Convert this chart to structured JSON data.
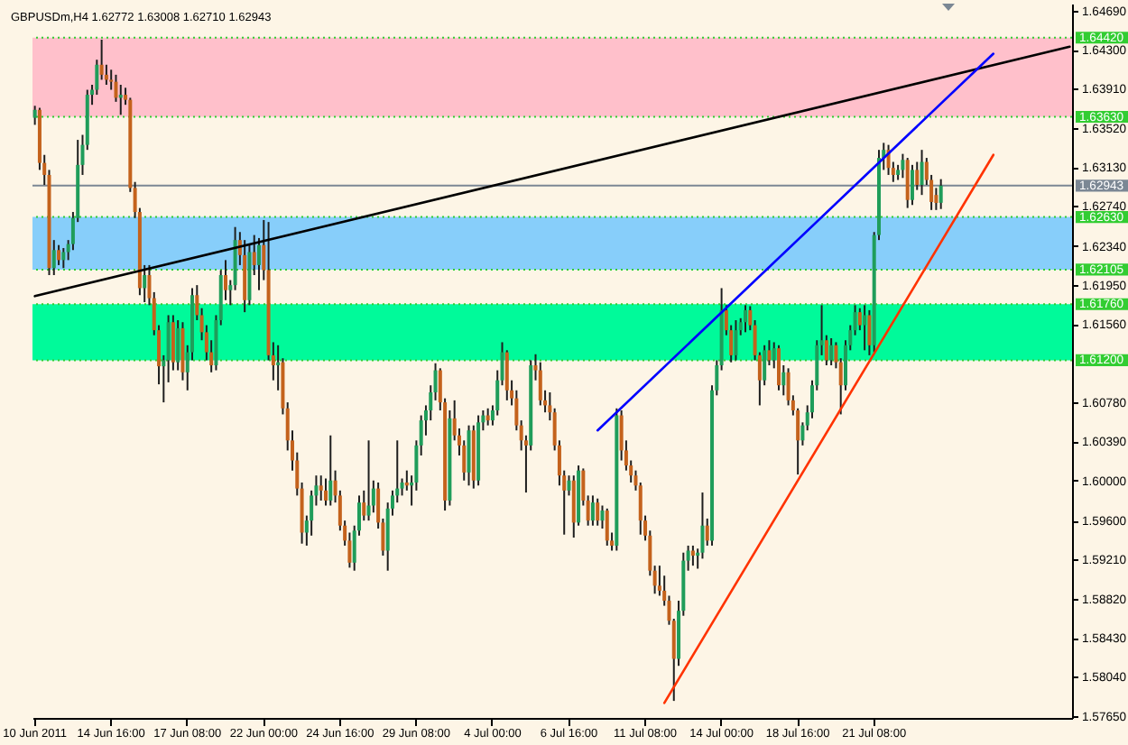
{
  "chart_data": {
    "type": "candlestick",
    "title": "GBPUSDm,H4 1.62772 1.63008 1.62710 1.62943",
    "categories": [
      "10 Jun 2011",
      null,
      null,
      null,
      null,
      null,
      null,
      null,
      null,
      null,
      null,
      null,
      null,
      null,
      null,
      null,
      "14 Jun 16:00",
      null,
      null,
      null,
      null,
      null,
      null,
      null,
      null,
      null,
      null,
      null,
      null,
      null,
      null,
      null,
      "17 Jun 08:00",
      null,
      null,
      null,
      null,
      null,
      null,
      null,
      null,
      null,
      null,
      null,
      null,
      null,
      null,
      null,
      "22 Jun 00:00",
      null,
      null,
      null,
      null,
      null,
      null,
      null,
      null,
      null,
      null,
      null,
      null,
      null,
      null,
      null,
      "24 Jun 16:00",
      null,
      null,
      null,
      null,
      null,
      null,
      null,
      null,
      null,
      null,
      null,
      null,
      null,
      null,
      null,
      "29 Jun 08:00",
      null,
      null,
      null,
      null,
      null,
      null,
      null,
      null,
      null,
      null,
      null,
      null,
      null,
      null,
      null,
      "4 Jul 00:00",
      null,
      null,
      null,
      null,
      null,
      null,
      null,
      null,
      null,
      null,
      null,
      null,
      null,
      null,
      null,
      "6 Jul 16:00",
      null,
      null,
      null,
      null,
      null,
      null,
      null,
      null,
      null,
      null,
      null,
      null,
      null,
      null,
      null,
      "11 Jul 08:00",
      null,
      null,
      null,
      null,
      null,
      null,
      null,
      null,
      null,
      null,
      null,
      null,
      null,
      null,
      null,
      "14 Jul 00:00",
      null,
      null,
      null,
      null,
      null,
      null,
      null,
      null,
      null,
      null,
      null,
      null,
      null,
      null,
      null,
      "18 Jul 16:00",
      null,
      null,
      null,
      null,
      null,
      null,
      null,
      null,
      null,
      null,
      null,
      null,
      null,
      null,
      null,
      "21 Jul 08:00",
      null,
      null,
      null,
      null,
      null,
      null,
      null,
      null,
      null,
      null,
      null,
      null,
      null,
      null,
      null,
      null,
      null,
      null,
      null,
      null,
      null,
      null,
      null,
      null,
      null,
      null,
      null,
      null,
      null,
      null,
      null,
      null,
      null,
      null,
      null,
      null,
      null,
      null,
      null,
      null,
      null
    ],
    "ohlc": [
      [
        1.6362,
        1.6374,
        1.6355,
        1.637
      ],
      [
        1.637,
        1.6372,
        1.631,
        1.6317
      ],
      [
        1.6317,
        1.6325,
        1.6295,
        1.6305
      ],
      [
        1.6305,
        1.631,
        1.6205,
        1.6212
      ],
      [
        1.6212,
        1.624,
        1.6205,
        1.623
      ],
      [
        1.623,
        1.6235,
        1.6215,
        1.622
      ],
      [
        1.622,
        1.6232,
        1.6212,
        1.6228
      ],
      [
        1.6228,
        1.624,
        1.622,
        1.6236
      ],
      [
        1.6236,
        1.6268,
        1.623,
        1.6262
      ],
      [
        1.6262,
        1.634,
        1.6258,
        1.6315
      ],
      [
        1.6315,
        1.6345,
        1.6305,
        1.6335
      ],
      [
        1.6335,
        1.639,
        1.633,
        1.6385
      ],
      [
        1.6385,
        1.6395,
        1.6375,
        1.639
      ],
      [
        1.639,
        1.642,
        1.6385,
        1.6415
      ],
      [
        1.6415,
        1.644,
        1.64,
        1.6405
      ],
      [
        1.6405,
        1.6415,
        1.6395,
        1.64
      ],
      [
        1.64,
        1.641,
        1.639,
        1.6398
      ],
      [
        1.6398,
        1.6405,
        1.6378,
        1.6382
      ],
      [
        1.6382,
        1.6395,
        1.6365,
        1.6385
      ],
      [
        1.6385,
        1.6392,
        1.6375,
        1.638
      ],
      [
        1.638,
        1.6382,
        1.6288,
        1.6292
      ],
      [
        1.6292,
        1.6298,
        1.6262,
        1.6268
      ],
      [
        1.6268,
        1.6272,
        1.6185,
        1.6192
      ],
      [
        1.6192,
        1.6215,
        1.6178,
        1.6205
      ],
      [
        1.6205,
        1.6215,
        1.6175,
        1.6182
      ],
      [
        1.6182,
        1.6188,
        1.6145,
        1.615
      ],
      [
        1.615,
        1.6155,
        1.6096,
        1.6114
      ],
      [
        1.6114,
        1.6125,
        1.6078,
        1.612
      ],
      [
        1.612,
        1.6165,
        1.6098,
        1.6158
      ],
      [
        1.6158,
        1.6165,
        1.611,
        1.6118
      ],
      [
        1.6118,
        1.616,
        1.611,
        1.6152
      ],
      [
        1.6152,
        1.6158,
        1.61,
        1.6108
      ],
      [
        1.6108,
        1.6135,
        1.609,
        1.6128
      ],
      [
        1.6128,
        1.6192,
        1.612,
        1.6185
      ],
      [
        1.6185,
        1.6195,
        1.616,
        1.6165
      ],
      [
        1.6165,
        1.6172,
        1.614,
        1.6148
      ],
      [
        1.6148,
        1.6155,
        1.612,
        1.6128
      ],
      [
        1.6128,
        1.614,
        1.6108,
        1.6115
      ],
      [
        1.6115,
        1.6165,
        1.611,
        1.616
      ],
      [
        1.616,
        1.621,
        1.6155,
        1.6205
      ],
      [
        1.6205,
        1.622,
        1.618,
        1.619
      ],
      [
        1.619,
        1.62,
        1.6175,
        1.6195
      ],
      [
        1.6195,
        1.6253,
        1.619,
        1.624
      ],
      [
        1.624,
        1.6248,
        1.6215,
        1.6225
      ],
      [
        1.6225,
        1.624,
        1.6168,
        1.618
      ],
      [
        1.618,
        1.6235,
        1.6175,
        1.6228
      ],
      [
        1.6228,
        1.6245,
        1.6205,
        1.6215
      ],
      [
        1.6215,
        1.6242,
        1.619,
        1.6235
      ],
      [
        1.6235,
        1.626,
        1.62,
        1.621
      ],
      [
        1.621,
        1.6258,
        1.612,
        1.6125
      ],
      [
        1.6125,
        1.6138,
        1.61,
        1.6115
      ],
      [
        1.6115,
        1.6135,
        1.609,
        1.6118
      ],
      [
        1.6118,
        1.6122,
        1.6066,
        1.6072
      ],
      [
        1.6072,
        1.6078,
        1.603,
        1.604
      ],
      [
        1.604,
        1.605,
        1.601,
        1.602
      ],
      [
        1.602,
        1.6028,
        1.5985,
        1.5992
      ],
      [
        1.5992,
        1.5998,
        1.5937,
        1.5948
      ],
      [
        1.5948,
        1.5965,
        1.5935,
        1.596
      ],
      [
        1.596,
        1.599,
        1.5945,
        1.5985
      ],
      [
        1.5985,
        1.6005,
        1.5975,
        1.5995
      ],
      [
        1.5995,
        1.6005,
        1.598,
        1.599
      ],
      [
        1.599,
        1.6002,
        1.5975,
        1.598
      ],
      [
        1.598,
        1.6045,
        1.5975,
        1.6
      ],
      [
        1.6,
        1.601,
        1.5978,
        1.5985
      ],
      [
        1.5985,
        1.599,
        1.595,
        1.5955
      ],
      [
        1.5955,
        1.596,
        1.5935,
        1.594
      ],
      [
        1.594,
        1.5948,
        1.5913,
        1.5918
      ],
      [
        1.5918,
        1.5955,
        1.591,
        1.595
      ],
      [
        1.595,
        1.5985,
        1.5945,
        1.5978
      ],
      [
        1.5978,
        1.599,
        1.596,
        1.5965
      ],
      [
        1.5965,
        1.604,
        1.596,
        1.5975
      ],
      [
        1.5975,
        1.6,
        1.5968,
        1.5992
      ],
      [
        1.5992,
        1.5998,
        1.5952,
        1.5958
      ],
      [
        1.5958,
        1.5962,
        1.5925,
        1.593
      ],
      [
        1.593,
        1.5978,
        1.591,
        1.5972
      ],
      [
        1.5972,
        1.599,
        1.5965,
        1.5985
      ],
      [
        1.5985,
        1.604,
        1.5978,
        1.5992
      ],
      [
        1.5992,
        1.6002,
        1.5985,
        1.5998
      ],
      [
        1.5998,
        1.601,
        1.599,
        1.5995
      ],
      [
        1.5995,
        1.6005,
        1.5975,
        1.5998
      ],
      [
        1.5998,
        1.604,
        1.599,
        1.6035
      ],
      [
        1.6035,
        1.6065,
        1.6025,
        1.606
      ],
      [
        1.606,
        1.6075,
        1.6045,
        1.607
      ],
      [
        1.607,
        1.6095,
        1.606,
        1.6088
      ],
      [
        1.6088,
        1.6117,
        1.608,
        1.611
      ],
      [
        1.611,
        1.6112,
        1.607,
        1.6078
      ],
      [
        1.6078,
        1.6082,
        1.597,
        1.598
      ],
      [
        1.598,
        1.607,
        1.5975,
        1.6062
      ],
      [
        1.6062,
        1.608,
        1.604,
        1.6045
      ],
      [
        1.6045,
        1.6052,
        1.6025,
        1.6035
      ],
      [
        1.6035,
        1.604,
        1.6,
        1.6008
      ],
      [
        1.6008,
        1.6055,
        1.5995,
        1.605
      ],
      [
        1.605,
        1.6055,
        1.5992,
        1.6
      ],
      [
        1.6,
        1.6065,
        1.5995,
        1.6058
      ],
      [
        1.6058,
        1.607,
        1.605,
        1.6065
      ],
      [
        1.6065,
        1.6072,
        1.6055,
        1.606
      ],
      [
        1.606,
        1.6075,
        1.6055,
        1.607
      ],
      [
        1.607,
        1.611,
        1.6065,
        1.61
      ],
      [
        1.61,
        1.6138,
        1.6095,
        1.6128
      ],
      [
        1.6128,
        1.613,
        1.608,
        1.609
      ],
      [
        1.609,
        1.61,
        1.6075,
        1.6082
      ],
      [
        1.6082,
        1.609,
        1.605,
        1.6055
      ],
      [
        1.6055,
        1.606,
        1.603,
        1.604
      ],
      [
        1.604,
        1.6045,
        1.5988,
        1.6035
      ],
      [
        1.6035,
        1.612,
        1.603,
        1.6115
      ],
      [
        1.6115,
        1.6126,
        1.61,
        1.611
      ],
      [
        1.611,
        1.6118,
        1.6075,
        1.608
      ],
      [
        1.608,
        1.609,
        1.6068,
        1.6075
      ],
      [
        1.6075,
        1.6088,
        1.606,
        1.6068
      ],
      [
        1.6068,
        1.6072,
        1.603,
        1.6035
      ],
      [
        1.6035,
        1.604,
        1.5995,
        1.6005
      ],
      [
        1.6005,
        1.601,
        1.5946,
        1.599
      ],
      [
        1.599,
        1.6005,
        1.5985,
        1.6
      ],
      [
        1.6,
        1.6005,
        1.5943,
        1.5958
      ],
      [
        1.5958,
        1.6015,
        1.5955,
        1.601
      ],
      [
        1.601,
        1.6012,
        1.5975,
        1.598
      ],
      [
        1.598,
        1.5985,
        1.5955,
        1.596
      ],
      [
        1.596,
        1.5985,
        1.5955,
        1.5978
      ],
      [
        1.5978,
        1.5982,
        1.5955,
        1.596
      ],
      [
        1.596,
        1.5975,
        1.5952,
        1.597
      ],
      [
        1.597,
        1.5972,
        1.5935,
        1.594
      ],
      [
        1.594,
        1.5948,
        1.593,
        1.5935
      ],
      [
        1.5935,
        1.6072,
        1.593,
        1.6065
      ],
      [
        1.6065,
        1.607,
        1.602,
        1.603
      ],
      [
        1.603,
        1.604,
        1.601,
        1.6015
      ],
      [
        1.6015,
        1.602,
        1.5998,
        1.6005
      ],
      [
        1.6005,
        1.601,
        1.599,
        1.5995
      ],
      [
        1.5995,
        1.5998,
        1.5946,
        1.596
      ],
      [
        1.596,
        1.5965,
        1.594,
        1.5945
      ],
      [
        1.5945,
        1.595,
        1.5905,
        1.591
      ],
      [
        1.591,
        1.5915,
        1.5887,
        1.5895
      ],
      [
        1.5895,
        1.5915,
        1.5885,
        1.589
      ],
      [
        1.589,
        1.5905,
        1.5875,
        1.588
      ],
      [
        1.588,
        1.5885,
        1.5856,
        1.586
      ],
      [
        1.586,
        1.5862,
        1.578,
        1.5822
      ],
      [
        1.5822,
        1.588,
        1.5815,
        1.587
      ],
      [
        1.587,
        1.5928,
        1.5865,
        1.592
      ],
      [
        1.592,
        1.5935,
        1.591,
        1.593
      ],
      [
        1.593,
        1.5935,
        1.5915,
        1.5925
      ],
      [
        1.5925,
        1.5932,
        1.5912,
        1.5928
      ],
      [
        1.5928,
        1.5988,
        1.5922,
        1.5955
      ],
      [
        1.5955,
        1.5962,
        1.5935,
        1.594
      ],
      [
        1.594,
        1.6095,
        1.5935,
        1.609
      ],
      [
        1.609,
        1.612,
        1.6085,
        1.6115
      ],
      [
        1.6115,
        1.6192,
        1.611,
        1.617
      ],
      [
        1.617,
        1.6175,
        1.6145,
        1.615
      ],
      [
        1.615,
        1.6155,
        1.6118,
        1.6125
      ],
      [
        1.6125,
        1.616,
        1.612,
        1.615
      ],
      [
        1.615,
        1.6162,
        1.6145,
        1.6158
      ],
      [
        1.6158,
        1.6175,
        1.6148,
        1.617
      ],
      [
        1.617,
        1.6174,
        1.615,
        1.6155
      ],
      [
        1.6155,
        1.616,
        1.612,
        1.6125
      ],
      [
        1.6125,
        1.6128,
        1.6075,
        1.61
      ],
      [
        1.61,
        1.6135,
        1.6095,
        1.613
      ],
      [
        1.613,
        1.614,
        1.6115,
        1.612
      ],
      [
        1.612,
        1.6138,
        1.6112,
        1.6132
      ],
      [
        1.6132,
        1.6135,
        1.609,
        1.6095
      ],
      [
        1.6095,
        1.6115,
        1.6085,
        1.6108
      ],
      [
        1.6108,
        1.6112,
        1.6075,
        1.608
      ],
      [
        1.608,
        1.6085,
        1.6065,
        1.607
      ],
      [
        1.607,
        1.6072,
        1.6006,
        1.604
      ],
      [
        1.604,
        1.6058,
        1.6035,
        1.6055
      ],
      [
        1.6055,
        1.6075,
        1.605,
        1.6068
      ],
      [
        1.6068,
        1.61,
        1.6062,
        1.6095
      ],
      [
        1.6095,
        1.614,
        1.609,
        1.6135
      ],
      [
        1.6135,
        1.6175,
        1.6125,
        1.614
      ],
      [
        1.614,
        1.6145,
        1.6115,
        1.612
      ],
      [
        1.612,
        1.6142,
        1.6115,
        1.6135
      ],
      [
        1.6135,
        1.6138,
        1.6112,
        1.6118
      ],
      [
        1.6118,
        1.6122,
        1.6066,
        1.6095
      ],
      [
        1.6095,
        1.614,
        1.609,
        1.6135
      ],
      [
        1.6135,
        1.6155,
        1.613,
        1.615
      ],
      [
        1.615,
        1.6175,
        1.6145,
        1.6168
      ],
      [
        1.6168,
        1.6172,
        1.615,
        1.6155
      ],
      [
        1.6155,
        1.6175,
        1.613,
        1.6165
      ],
      [
        1.6165,
        1.617,
        1.6125,
        1.6135
      ],
      [
        1.6135,
        1.6248,
        1.6128,
        1.6245
      ],
      [
        1.6245,
        1.633,
        1.624,
        1.6322
      ],
      [
        1.6322,
        1.6337,
        1.631,
        1.633
      ],
      [
        1.633,
        1.6335,
        1.6305,
        1.6312
      ],
      [
        1.6312,
        1.6318,
        1.6298,
        1.6305
      ],
      [
        1.6305,
        1.6315,
        1.63,
        1.631
      ],
      [
        1.631,
        1.6326,
        1.6302,
        1.632
      ],
      [
        1.632,
        1.6322,
        1.6272,
        1.628
      ],
      [
        1.628,
        1.6315,
        1.6275,
        1.631
      ],
      [
        1.631,
        1.6318,
        1.629,
        1.6295
      ],
      [
        1.6295,
        1.633,
        1.6285,
        1.6318
      ],
      [
        1.6318,
        1.6322,
        1.6295,
        1.63
      ],
      [
        1.63,
        1.6305,
        1.627,
        1.6278
      ],
      [
        1.6285,
        1.6292,
        1.627,
        1.6277
      ],
      [
        1.62772,
        1.63008,
        1.6271,
        1.62943
      ],
      null,
      null,
      null,
      null,
      null,
      null,
      null,
      null,
      null,
      null,
      null,
      null,
      null,
      null,
      null,
      null,
      null,
      null,
      null,
      null,
      null,
      null,
      null,
      null,
      null,
      null,
      null
    ],
    "colors": [
      "#1f9d5a",
      "#c4621c",
      "#c4621c",
      "#c4621c",
      "#1f9d5a",
      "#c4621c",
      "#1f9d5a",
      "#1f9d5a",
      "#1f9d5a",
      "#1f9d5a",
      "#1f9d5a",
      "#1f9d5a",
      "#1f9d5a",
      "#1f9d5a",
      "#c4621c",
      "#c4621c",
      "#c4621c",
      "#c4621c",
      "#1f9d5a",
      "#c4621c",
      "#c4621c",
      "#c4621c",
      "#c4621c",
      "#1f9d5a",
      "#c4621c",
      "#c4621c",
      "#c4621c",
      "#1f9d5a",
      "#1f9d5a",
      "#c4621c",
      "#1f9d5a",
      "#c4621c",
      "#1f9d5a",
      "#1f9d5a",
      "#c4621c",
      "#c4621c",
      "#c4621c",
      "#c4621c",
      "#1f9d5a",
      "#1f9d5a",
      "#c4621c",
      "#1f9d5a",
      "#1f9d5a",
      "#c4621c",
      "#c4621c",
      "#1f9d5a",
      "#c4621c",
      "#1f9d5a",
      "#c4621c",
      "#c4621c",
      "#c4621c",
      "#1f9d5a",
      "#c4621c",
      "#c4621c",
      "#c4621c",
      "#c4621c",
      "#c4621c",
      "#1f9d5a",
      "#1f9d5a",
      "#1f9d5a",
      "#c4621c",
      "#c4621c",
      "#1f9d5a",
      "#c4621c",
      "#c4621c",
      "#c4621c",
      "#c4621c",
      "#1f9d5a",
      "#1f9d5a",
      "#c4621c",
      "#1f9d5a",
      "#1f9d5a",
      "#c4621c",
      "#c4621c",
      "#1f9d5a",
      "#1f9d5a",
      "#1f9d5a",
      "#1f9d5a",
      "#c4621c",
      "#1f9d5a",
      "#1f9d5a",
      "#1f9d5a",
      "#1f9d5a",
      "#1f9d5a",
      "#1f9d5a",
      "#c4621c",
      "#c4621c",
      "#1f9d5a",
      "#c4621c",
      "#c4621c",
      "#c4621c",
      "#1f9d5a",
      "#c4621c",
      "#1f9d5a",
      "#1f9d5a",
      "#c4621c",
      "#1f9d5a",
      "#1f9d5a",
      "#1f9d5a",
      "#c4621c",
      "#c4621c",
      "#c4621c",
      "#c4621c",
      "#c4621c",
      "#1f9d5a",
      "#c4621c",
      "#c4621c",
      "#c4621c",
      "#c4621c",
      "#c4621c",
      "#c4621c",
      "#c4621c",
      "#1f9d5a",
      "#c4621c",
      "#1f9d5a",
      "#c4621c",
      "#c4621c",
      "#1f9d5a",
      "#c4621c",
      "#1f9d5a",
      "#c4621c",
      "#c4621c",
      "#1f9d5a",
      "#c4621c",
      "#c4621c",
      "#c4621c",
      "#c4621c",
      "#c4621c",
      "#c4621c",
      "#c4621c",
      "#c4621c",
      "#c4621c",
      "#c4621c",
      "#c4621c",
      "#c4621c",
      "#1f9d5a",
      "#1f9d5a",
      "#1f9d5a",
      "#c4621c",
      "#1f9d5a",
      "#1f9d5a",
      "#c4621c",
      "#1f9d5a",
      "#1f9d5a",
      "#1f9d5a",
      "#c4621c",
      "#c4621c",
      "#1f9d5a",
      "#1f9d5a",
      "#1f9d5a",
      "#c4621c",
      "#c4621c",
      "#c4621c",
      "#1f9d5a",
      "#c4621c",
      "#1f9d5a",
      "#c4621c",
      "#1f9d5a",
      "#c4621c",
      "#c4621c",
      "#c4621c",
      "#1f9d5a",
      "#1f9d5a",
      "#1f9d5a",
      "#1f9d5a",
      "#1f9d5a",
      "#c4621c",
      "#1f9d5a",
      "#c4621c",
      "#c4621c",
      "#1f9d5a",
      "#1f9d5a",
      "#1f9d5a",
      "#c4621c",
      "#1f9d5a",
      "#c4621c",
      "#1f9d5a",
      "#1f9d5a",
      "#1f9d5a",
      "#c4621c",
      "#c4621c",
      "#1f9d5a",
      "#1f9d5a",
      "#c4621c",
      "#1f9d5a",
      "#c4621c",
      "#1f9d5a",
      "#c4621c",
      "#c4621c",
      "#c4621c",
      "#1f9d5a",
      null,
      null,
      null,
      null,
      null,
      null,
      null,
      null,
      null,
      null,
      null,
      null,
      null,
      null,
      null,
      null,
      null,
      null,
      null,
      null,
      null,
      null,
      null,
      null,
      null,
      null,
      null
    ],
    "series": [
      {
        "type": "line",
        "color": "#000000",
        "values": [
          1.6184,
          null,
          null,
          null,
          null,
          null,
          null,
          null,
          null,
          null,
          null,
          null,
          null,
          null,
          null,
          null,
          null,
          null,
          null,
          null,
          null,
          null,
          null,
          null,
          null,
          null,
          null,
          null,
          null,
          null,
          null,
          null,
          null,
          null,
          null,
          null,
          null,
          null,
          null,
          null,
          null,
          null,
          null,
          null,
          null,
          null,
          null,
          null,
          null,
          null,
          null,
          null,
          null,
          null,
          null,
          null,
          null,
          null,
          null,
          null,
          null,
          null,
          null,
          null,
          null,
          null,
          null,
          null,
          null,
          null,
          null,
          null,
          null,
          null,
          null,
          null,
          null,
          null,
          null,
          null,
          null,
          null,
          null,
          null,
          null,
          null,
          null,
          null,
          null,
          null,
          null,
          null,
          null,
          null,
          null,
          null,
          null,
          null,
          null,
          null,
          null,
          null,
          null,
          null,
          null,
          null,
          null,
          null,
          null,
          null,
          null,
          null,
          null,
          null,
          null,
          null,
          null,
          null,
          null,
          null,
          null,
          null,
          null,
          null,
          null,
          null,
          null,
          null,
          null,
          null,
          null,
          null,
          null,
          null,
          null,
          null,
          null,
          null,
          null,
          null,
          null,
          null,
          null,
          null,
          null,
          null,
          null,
          null,
          null,
          null,
          null,
          null,
          null,
          null,
          null,
          null,
          null,
          null,
          null,
          null,
          null,
          null,
          null,
          null,
          null,
          null,
          null,
          null,
          null,
          null,
          null,
          null,
          null,
          null,
          null,
          null,
          null,
          null,
          null,
          null,
          null,
          null,
          null,
          null,
          null,
          null,
          null,
          null,
          null,
          null,
          null,
          null,
          null,
          null,
          null,
          null,
          null,
          null,
          null,
          null,
          null,
          null,
          null,
          null,
          null,
          null,
          null,
          null,
          null,
          null,
          null,
          null,
          null,
          null,
          null,
          null,
          null,
          1.6433
        ]
      },
      {
        "type": "line",
        "color": "#0000ff",
        "values": [
          null,
          null,
          null,
          null,
          null,
          null,
          null,
          null,
          null,
          null,
          null,
          null,
          null,
          null,
          null,
          null,
          null,
          null,
          null,
          null,
          null,
          null,
          null,
          null,
          null,
          null,
          null,
          null,
          null,
          null,
          null,
          null,
          null,
          null,
          null,
          null,
          null,
          null,
          null,
          null,
          null,
          null,
          null,
          null,
          null,
          null,
          null,
          null,
          null,
          null,
          null,
          null,
          null,
          null,
          null,
          null,
          null,
          null,
          null,
          null,
          null,
          null,
          null,
          null,
          null,
          null,
          null,
          null,
          null,
          null,
          null,
          null,
          null,
          null,
          null,
          null,
          null,
          null,
          null,
          null,
          null,
          null,
          null,
          null,
          null,
          null,
          null,
          null,
          null,
          null,
          null,
          null,
          null,
          null,
          null,
          null,
          null,
          null,
          null,
          null,
          null,
          null,
          null,
          null,
          null,
          null,
          null,
          null,
          null,
          null,
          null,
          null,
          null,
          null,
          null,
          null,
          null,
          null,
          1.605,
          null,
          null,
          null,
          null,
          null,
          null,
          null,
          null,
          null,
          null,
          null,
          null,
          null,
          null,
          null,
          null,
          null,
          null,
          null,
          null,
          null,
          null,
          null,
          null,
          null,
          null,
          null,
          null,
          null,
          null,
          null,
          null,
          null,
          null,
          null,
          null,
          null,
          null,
          null,
          null,
          null,
          null,
          null,
          null,
          null,
          null,
          null,
          null,
          null,
          null,
          null,
          null,
          null,
          null,
          null,
          null,
          null,
          null,
          null,
          null,
          null,
          null,
          null,
          null,
          null,
          null,
          null,
          null,
          null,
          null,
          null,
          null,
          null,
          null,
          null,
          null,
          null,
          null,
          null,
          null,
          null,
          null,
          1.6426,
          null,
          null,
          null,
          null,
          null,
          null,
          null,
          null,
          null,
          null,
          null,
          null,
          null,
          null,
          null,
          null
        ]
      },
      {
        "type": "line",
        "color": "#ff3300",
        "values": [
          null,
          null,
          null,
          null,
          null,
          null,
          null,
          null,
          null,
          null,
          null,
          null,
          null,
          null,
          null,
          null,
          null,
          null,
          null,
          null,
          null,
          null,
          null,
          null,
          null,
          null,
          null,
          null,
          null,
          null,
          null,
          null,
          null,
          null,
          null,
          null,
          null,
          null,
          null,
          null,
          null,
          null,
          null,
          null,
          null,
          null,
          null,
          null,
          null,
          null,
          null,
          null,
          null,
          null,
          null,
          null,
          null,
          null,
          null,
          null,
          null,
          null,
          null,
          null,
          null,
          null,
          null,
          null,
          null,
          null,
          null,
          null,
          null,
          null,
          null,
          null,
          null,
          null,
          null,
          null,
          null,
          null,
          null,
          null,
          null,
          null,
          null,
          null,
          null,
          null,
          null,
          null,
          null,
          null,
          null,
          null,
          null,
          null,
          null,
          null,
          null,
          null,
          null,
          null,
          null,
          null,
          null,
          null,
          null,
          null,
          null,
          null,
          null,
          null,
          null,
          null,
          null,
          null,
          null,
          null,
          null,
          null,
          null,
          null,
          null,
          null,
          null,
          null,
          null,
          null,
          null,
          null,
          1.5778,
          null,
          null,
          null,
          null,
          null,
          null,
          null,
          null,
          null,
          null,
          null,
          null,
          null,
          null,
          null,
          null,
          null,
          null,
          null,
          null,
          null,
          null,
          null,
          null,
          null,
          null,
          null,
          null,
          null,
          null,
          null,
          null,
          null,
          null,
          null,
          null,
          null,
          null,
          null,
          null,
          null,
          null,
          null,
          null,
          null,
          null,
          null,
          null,
          null,
          null,
          null,
          null,
          null,
          null,
          null,
          null,
          null,
          null,
          null,
          null,
          null,
          null,
          null,
          null,
          null,
          null,
          null,
          null,
          1.6325,
          null,
          null,
          null,
          null,
          null,
          null,
          null,
          null,
          null,
          null,
          null,
          null,
          null,
          null,
          null,
          null
        ]
      }
    ],
    "ylim": [
      1.5763,
      1.6476
    ],
    "yticks": [
      {
        "value": 1.6469,
        "label": "1.64690"
      },
      {
        "value": 1.643,
        "label": "1.64300"
      },
      {
        "value": 1.6391,
        "label": "1.63910"
      },
      {
        "value": 1.6352,
        "label": "1.63520"
      },
      {
        "value": 1.6313,
        "label": "1.63130"
      },
      {
        "value": 1.6274,
        "label": "1.62740"
      },
      {
        "value": 1.6234,
        "label": "1.62340"
      },
      {
        "value": 1.6195,
        "label": "1.61950"
      },
      {
        "value": 1.6156,
        "label": "1.61560"
      },
      {
        "value": 1.6078,
        "label": "1.60780"
      },
      {
        "value": 1.6039,
        "label": "1.60390"
      },
      {
        "value": 1.6,
        "label": "1.60000"
      },
      {
        "value": 1.596,
        "label": "1.59600"
      },
      {
        "value": 1.5921,
        "label": "1.59210"
      },
      {
        "value": 1.5882,
        "label": "1.58820"
      },
      {
        "value": 1.5843,
        "label": "1.58430"
      },
      {
        "value": 1.5804,
        "label": "1.58040"
      },
      {
        "value": 1.5765,
        "label": "1.57650"
      }
    ],
    "bands": [
      {
        "axis": "y",
        "from": 1.6363,
        "to": 1.6442,
        "color": "#ffc0cb"
      },
      {
        "axis": "y",
        "from": 1.62105,
        "to": 1.6263,
        "color": "#87cefa"
      },
      {
        "axis": "y",
        "from": 1.612,
        "to": 1.6176,
        "color": "#00fa9a"
      }
    ],
    "ref_lines": [
      {
        "axis": "y",
        "value": 1.6442,
        "label": "1.64420",
        "color": "#32cd32",
        "line_style": "dotted"
      },
      {
        "axis": "y",
        "value": 1.6363,
        "label": "1.63630",
        "color": "#32cd32",
        "line_style": "dotted"
      },
      {
        "axis": "y",
        "value": 1.62943,
        "label": "1.62943",
        "color": "#7b8794",
        "line_style": "solid"
      },
      {
        "axis": "y",
        "value": 1.6263,
        "label": "1.62630",
        "color": "#32cd32",
        "line_style": "dotted"
      },
      {
        "axis": "y",
        "value": 1.62105,
        "label": "1.62105",
        "color": "#32cd32",
        "line_style": "dotted"
      },
      {
        "axis": "y",
        "value": 1.6176,
        "label": "1.61760",
        "color": "#32cd32",
        "line_style": "dotted"
      },
      {
        "axis": "y",
        "value": 1.612,
        "label": "1.61200",
        "color": "#32cd32",
        "line_style": "dotted"
      }
    ]
  }
}
